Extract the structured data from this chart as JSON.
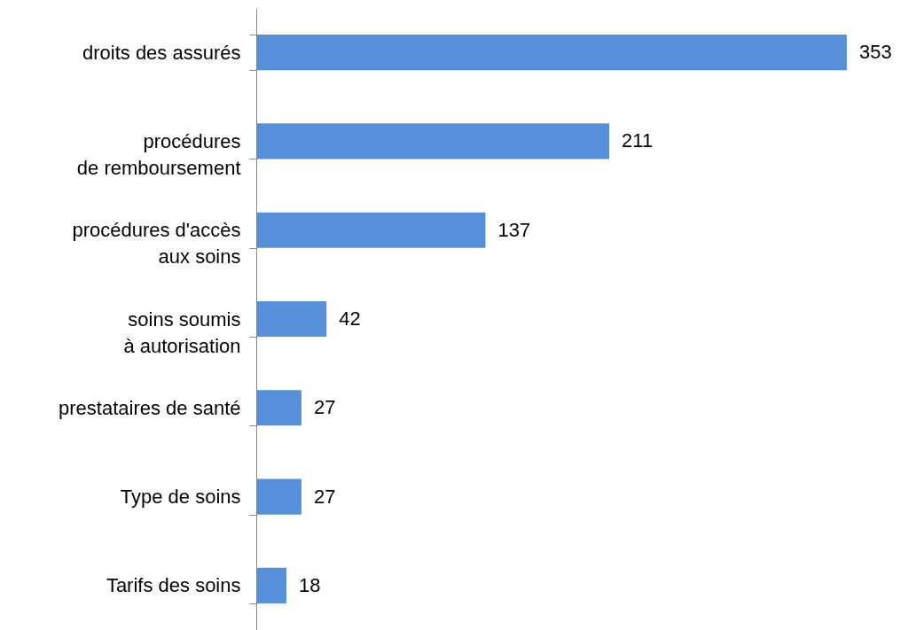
{
  "chart_data": {
    "type": "bar",
    "orientation": "horizontal",
    "categories": [
      "droits des assurés",
      "procédures\nde remboursement",
      "procédures d'accès\naux soins",
      "soins soumis\nà autorisation",
      "prestataires de santé",
      "Type de soins",
      "Tarifs des soins"
    ],
    "values": [
      353,
      211,
      137,
      42,
      27,
      27,
      18
    ],
    "color": "#5690d8",
    "data_labels": true
  }
}
